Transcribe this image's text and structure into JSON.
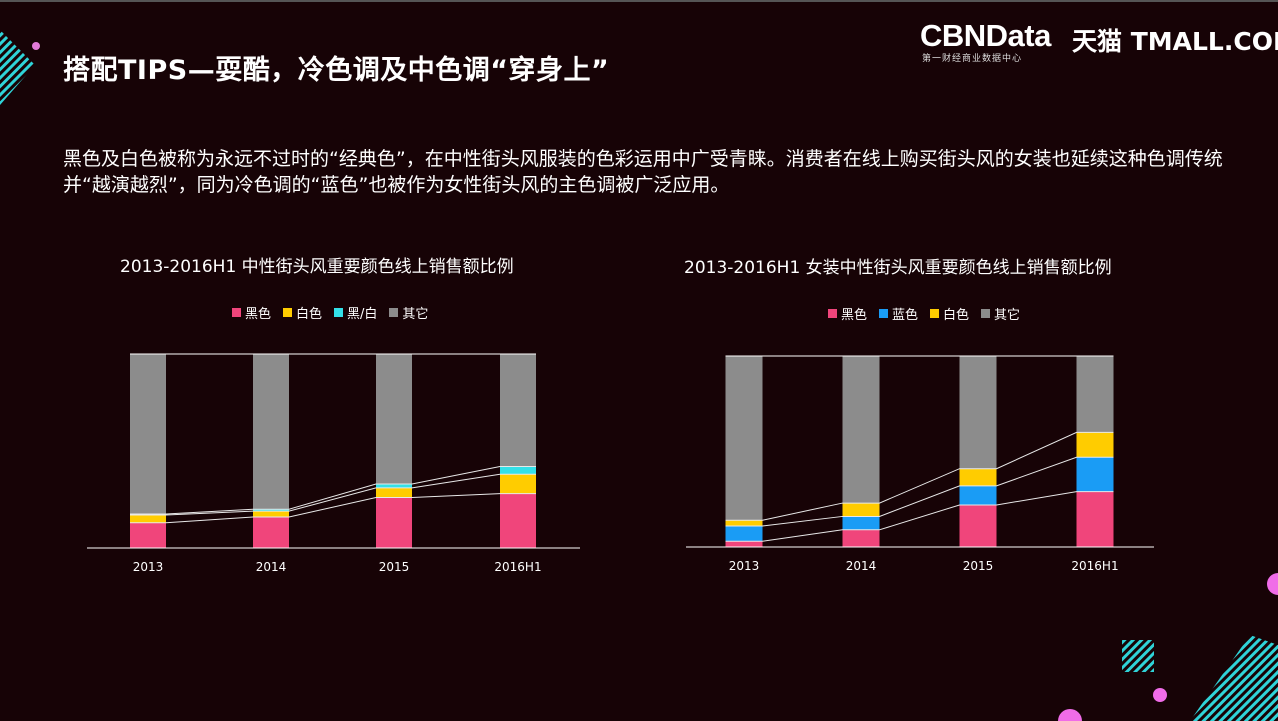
{
  "page": {
    "title": "搭配TIPS—耍酷，冷色调及中色调“穿身上”",
    "description": "黑色及白色被称为永远不过时的“经典色”，在中性街头风服装的色彩运用中广受青睐。消费者在线上购买街头风的女装也延续这种色调传统并“越演越烈”，同为冷色调的“蓝色”也被作为女性街头风的主色调被广泛应用。"
  },
  "logo": {
    "brand": "CBNData",
    "subtitle": "第一财经商业数据中心",
    "partner": "天猫 TMALL.COM"
  },
  "chart_data": [
    {
      "type": "bar",
      "stacked": true,
      "percent": true,
      "title": "2013-2016H1 中性街头风重要颜色线上销售额比例",
      "categories": [
        "2013",
        "2014",
        "2015",
        "2016H1"
      ],
      "series": [
        {
          "name": "黑色",
          "color": "#f0457b",
          "values": [
            13,
            16,
            26,
            28
          ]
        },
        {
          "name": "白色",
          "color": "#ffcc00",
          "values": [
            4,
            3,
            5,
            10
          ]
        },
        {
          "name": "黑/白",
          "color": "#33e0e8",
          "values": [
            0.5,
            1,
            2,
            4
          ]
        },
        {
          "name": "其它",
          "color": "#8c8c8c",
          "values": [
            82.5,
            80,
            67,
            58
          ]
        }
      ],
      "ylim": [
        0,
        100
      ],
      "legend": "top"
    },
    {
      "type": "bar",
      "stacked": true,
      "percent": true,
      "title": "2013-2016H1 女装中性街头风重要颜色线上销售额比例",
      "categories": [
        "2013",
        "2014",
        "2015",
        "2016H1"
      ],
      "series": [
        {
          "name": "黑色",
          "color": "#f0457b",
          "values": [
            3,
            9,
            22,
            29
          ]
        },
        {
          "name": "蓝色",
          "color": "#1a9cf5",
          "values": [
            8,
            7,
            10,
            18
          ]
        },
        {
          "name": "白色",
          "color": "#ffcc00",
          "values": [
            3,
            7,
            9,
            13
          ]
        },
        {
          "name": "其它",
          "color": "#8c8c8c",
          "values": [
            86,
            77,
            59,
            40
          ]
        }
      ],
      "ylim": [
        0,
        100
      ],
      "legend": "top"
    }
  ]
}
